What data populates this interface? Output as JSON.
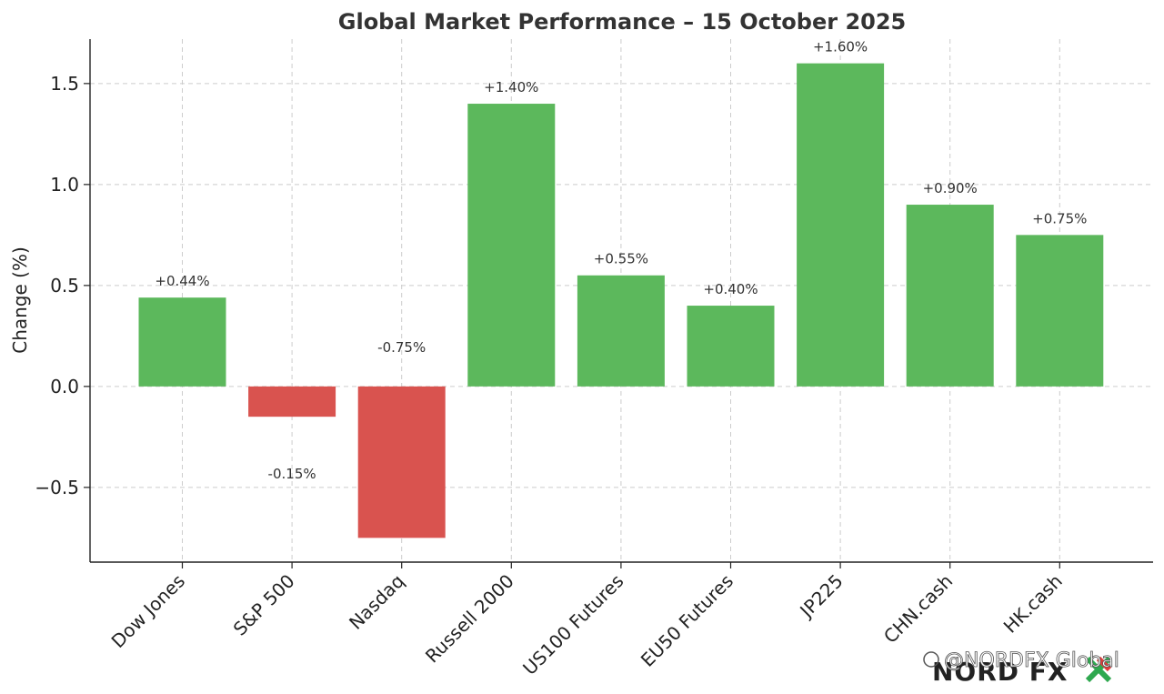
{
  "chart_data": {
    "type": "bar",
    "title": "Global Market Performance – 15 October 2025",
    "xlabel": "",
    "ylabel": "Change (%)",
    "categories": [
      "Dow Jones",
      "S&P 500",
      "Nasdaq",
      "Russell 2000",
      "US100 Futures",
      "EU50 Futures",
      "JP225",
      "CHN.cash",
      "HK.cash"
    ],
    "values": [
      0.44,
      -0.15,
      -0.75,
      1.4,
      0.55,
      0.4,
      1.6,
      0.9,
      0.75
    ],
    "data_labels": [
      "+0.44%",
      "-0.15%",
      "-0.75%",
      "+1.40%",
      "+0.55%",
      "+0.40%",
      "+1.60%",
      "+0.90%",
      "+0.75%"
    ],
    "ylim": [
      -0.87,
      1.72
    ],
    "yticks": [
      -0.5,
      0.0,
      0.5,
      1.0,
      1.5
    ],
    "ytick_labels": [
      "−0.5",
      "0.0",
      "0.5",
      "1.0",
      "1.5"
    ],
    "grid": true,
    "colors": {
      "positive": "#5cb85c",
      "negative": "#d9534f",
      "grid": "#cccccc",
      "axis": "#222222"
    }
  },
  "watermark": {
    "text": "@NORDFX Global",
    "logo": "NORD FX"
  }
}
